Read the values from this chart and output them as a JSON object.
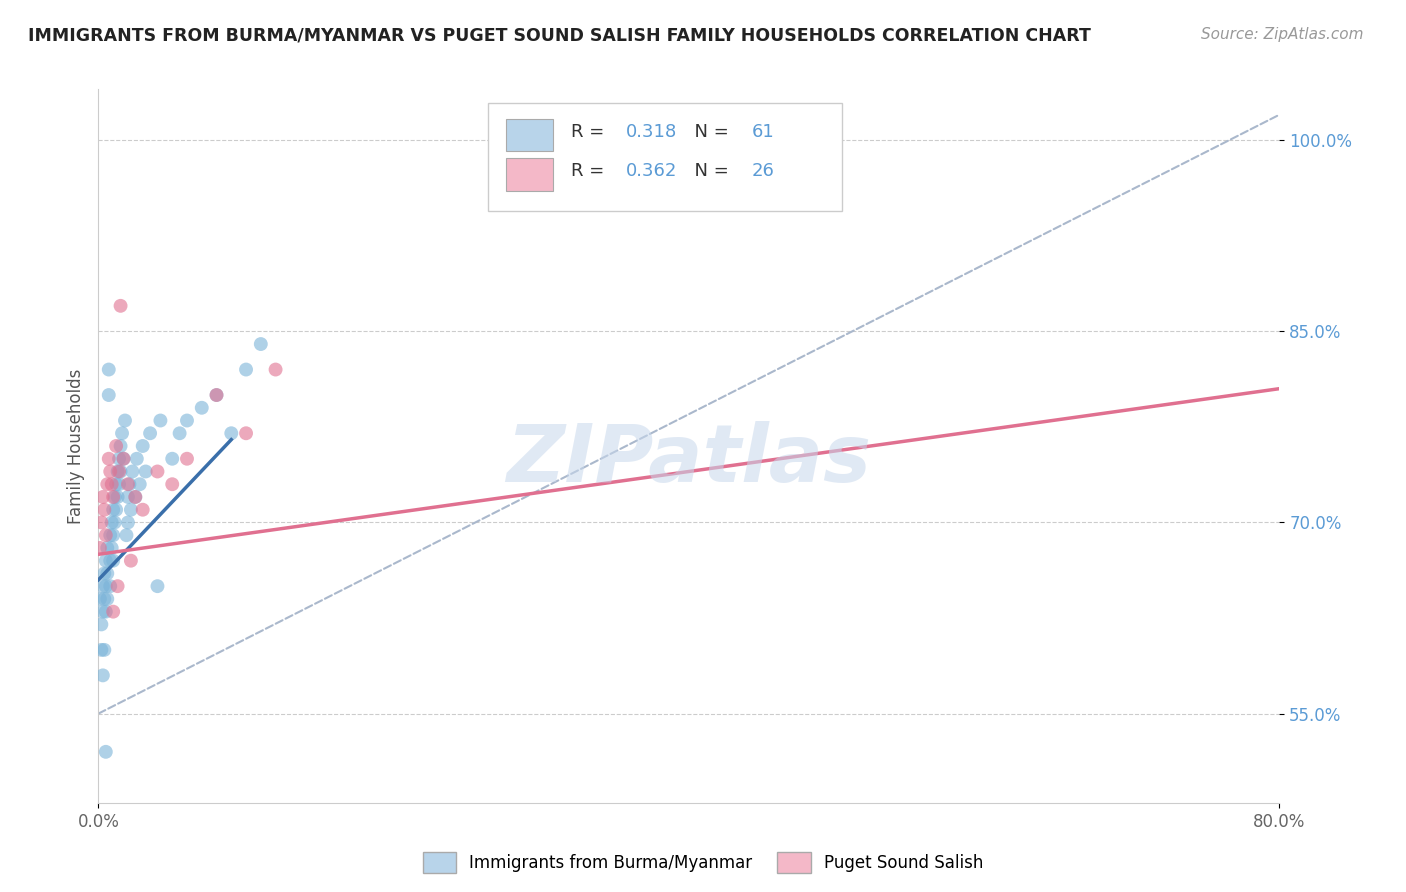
{
  "title": "IMMIGRANTS FROM BURMA/MYANMAR VS PUGET SOUND SALISH FAMILY HOUSEHOLDS CORRELATION CHART",
  "source": "Source: ZipAtlas.com",
  "ylabel": "Family Households",
  "watermark": "ZIPatlas",
  "xlim": [
    0.0,
    80.0
  ],
  "ylim": [
    48.0,
    104.0
  ],
  "x_ticks": [
    0.0,
    80.0
  ],
  "x_tick_labels": [
    "0.0%",
    "80.0%"
  ],
  "y_ticks": [
    55.0,
    70.0,
    85.0,
    100.0
  ],
  "y_tick_labels": [
    "55.0%",
    "70.0%",
    "85.0%",
    "100.0%"
  ],
  "R_blue": 0.318,
  "N_blue": 61,
  "R_pink": 0.362,
  "N_pink": 26,
  "blue_legend_color": "#b8d4ea",
  "blue_dot_color": "#7ab3d8",
  "blue_line_color": "#3a6faa",
  "pink_legend_color": "#f4b8c8",
  "pink_dot_color": "#e07090",
  "pink_line_color": "#e07090",
  "dashed_line_color": "#aab8cc",
  "background_color": "#ffffff",
  "legend_label_blue": "Immigrants from Burma/Myanmar",
  "legend_label_pink": "Puget Sound Salish",
  "blue_scatter_x": [
    0.1,
    0.2,
    0.2,
    0.3,
    0.3,
    0.4,
    0.4,
    0.5,
    0.5,
    0.5,
    0.6,
    0.6,
    0.6,
    0.7,
    0.7,
    0.8,
    0.8,
    0.8,
    0.9,
    0.9,
    1.0,
    1.0,
    1.0,
    1.1,
    1.1,
    1.2,
    1.2,
    1.3,
    1.3,
    1.4,
    1.4,
    1.5,
    1.5,
    1.6,
    1.7,
    1.8,
    1.9,
    2.0,
    2.0,
    2.1,
    2.2,
    2.3,
    2.5,
    2.6,
    2.8,
    3.0,
    3.2,
    3.5,
    4.0,
    4.2,
    5.0,
    5.5,
    6.0,
    7.0,
    8.0,
    9.0,
    10.0,
    11.0,
    0.3,
    0.4,
    0.5
  ],
  "blue_scatter_y": [
    64,
    62,
    60,
    65,
    63,
    66,
    64,
    67,
    65,
    63,
    68,
    66,
    64,
    82,
    80,
    69,
    67,
    65,
    70,
    68,
    71,
    69,
    67,
    72,
    70,
    73,
    71,
    74,
    72,
    75,
    73,
    76,
    74,
    77,
    75,
    78,
    69,
    72,
    70,
    73,
    71,
    74,
    72,
    75,
    73,
    76,
    74,
    77,
    65,
    78,
    75,
    77,
    78,
    79,
    80,
    77,
    82,
    84,
    58,
    60,
    52
  ],
  "pink_scatter_x": [
    0.1,
    0.2,
    0.3,
    0.4,
    0.5,
    0.6,
    0.7,
    0.8,
    0.9,
    1.0,
    1.2,
    1.4,
    1.5,
    1.7,
    2.0,
    2.5,
    3.0,
    4.0,
    5.0,
    6.0,
    8.0,
    10.0,
    12.0,
    1.0,
    1.3,
    2.2
  ],
  "pink_scatter_y": [
    68,
    70,
    72,
    71,
    69,
    73,
    75,
    74,
    73,
    72,
    76,
    74,
    87,
    75,
    73,
    72,
    71,
    74,
    73,
    75,
    80,
    77,
    82,
    63,
    65,
    67
  ],
  "blue_trend_x0": 0.0,
  "blue_trend_x1": 9.0,
  "blue_trend_y0": 65.5,
  "blue_trend_y1": 76.5,
  "pink_trend_x0": 0.0,
  "pink_trend_x1": 80.0,
  "pink_trend_y0": 67.5,
  "pink_trend_y1": 80.5,
  "dashed_trend_x0": 0.0,
  "dashed_trend_x1": 80.0,
  "dashed_trend_y0": 55.0,
  "dashed_trend_y1": 102.0
}
